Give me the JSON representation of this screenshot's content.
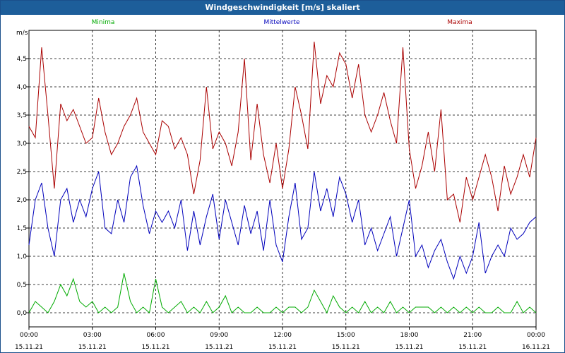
{
  "title": "Windgeschwindigkeit [m/s] skaliert",
  "chart_data": {
    "type": "line",
    "ylabel": "m/s",
    "ylim": [
      -0.25,
      5.0
    ],
    "y_ticks": [
      "0,0",
      "0,5",
      "1,0",
      "1,5",
      "2,0",
      "2,5",
      "3,0",
      "3,5",
      "4,0",
      "4,5"
    ],
    "y_tick_values": [
      0,
      0.5,
      1,
      1.5,
      2,
      2.5,
      3,
      3.5,
      4,
      4.5
    ],
    "xlim": [
      0,
      24
    ],
    "x_tick_values": [
      0,
      3,
      6,
      9,
      12,
      15,
      18,
      21,
      24
    ],
    "x_ticks": [
      {
        "time": "00:00",
        "date": "15.11.21"
      },
      {
        "time": "03:00",
        "date": "15.11.21"
      },
      {
        "time": "06:00",
        "date": "15.11.21"
      },
      {
        "time": "09:00",
        "date": "15.11.21"
      },
      {
        "time": "12:00",
        "date": "15.11.21"
      },
      {
        "time": "15:00",
        "date": "15.11.21"
      },
      {
        "time": "18:00",
        "date": "15.11.21"
      },
      {
        "time": "21:00",
        "date": "15.11.21"
      },
      {
        "time": "00:00",
        "date": "16.11.21"
      }
    ],
    "grid": true,
    "legend_position": "top",
    "series": [
      {
        "name": "Minima",
        "color": "#00aa00",
        "x": [
          0,
          0.3,
          0.6,
          0.9,
          1.2,
          1.5,
          1.8,
          2.1,
          2.4,
          2.7,
          3.0,
          3.3,
          3.6,
          3.9,
          4.2,
          4.5,
          4.8,
          5.1,
          5.4,
          5.7,
          6.0,
          6.3,
          6.6,
          6.9,
          7.2,
          7.5,
          7.8,
          8.1,
          8.4,
          8.7,
          9.0,
          9.3,
          9.6,
          9.9,
          10.2,
          10.5,
          10.8,
          11.1,
          11.4,
          11.7,
          12.0,
          12.3,
          12.6,
          12.9,
          13.2,
          13.5,
          13.8,
          14.1,
          14.4,
          14.7,
          15.0,
          15.3,
          15.6,
          15.9,
          16.2,
          16.5,
          16.8,
          17.1,
          17.4,
          17.7,
          18.0,
          18.3,
          18.6,
          18.9,
          19.2,
          19.5,
          19.8,
          20.1,
          20.4,
          20.7,
          21.0,
          21.3,
          21.6,
          21.9,
          22.2,
          22.5,
          22.8,
          23.1,
          23.4,
          23.7,
          24.0
        ],
        "values": [
          0.0,
          0.2,
          0.1,
          0.0,
          0.2,
          0.5,
          0.3,
          0.6,
          0.2,
          0.1,
          0.2,
          0.0,
          0.1,
          0.0,
          0.1,
          0.7,
          0.2,
          0.0,
          0.1,
          0.0,
          0.6,
          0.1,
          0.0,
          0.1,
          0.2,
          0.0,
          0.1,
          0.0,
          0.2,
          0.0,
          0.1,
          0.3,
          0.0,
          0.1,
          0.0,
          0.0,
          0.1,
          0.0,
          0.0,
          0.1,
          0.0,
          0.1,
          0.1,
          0.0,
          0.1,
          0.4,
          0.2,
          0.0,
          0.3,
          0.1,
          0.0,
          0.1,
          0.0,
          0.2,
          0.0,
          0.1,
          0.0,
          0.2,
          0.0,
          0.1,
          0.0,
          0.1,
          0.1,
          0.1,
          0.0,
          0.1,
          0.0,
          0.1,
          0.0,
          0.1,
          0.0,
          0.1,
          0.0,
          0.0,
          0.1,
          0.0,
          0.0,
          0.2,
          0.0,
          0.1,
          0.0
        ]
      },
      {
        "name": "Mittelwerte",
        "color": "#0000bb",
        "x": [
          0,
          0.3,
          0.6,
          0.9,
          1.2,
          1.5,
          1.8,
          2.1,
          2.4,
          2.7,
          3.0,
          3.3,
          3.6,
          3.9,
          4.2,
          4.5,
          4.8,
          5.1,
          5.4,
          5.7,
          6.0,
          6.3,
          6.6,
          6.9,
          7.2,
          7.5,
          7.8,
          8.1,
          8.4,
          8.7,
          9.0,
          9.3,
          9.6,
          9.9,
          10.2,
          10.5,
          10.8,
          11.1,
          11.4,
          11.7,
          12.0,
          12.3,
          12.6,
          12.9,
          13.2,
          13.5,
          13.8,
          14.1,
          14.4,
          14.7,
          15.0,
          15.3,
          15.6,
          15.9,
          16.2,
          16.5,
          16.8,
          17.1,
          17.4,
          17.7,
          18.0,
          18.3,
          18.6,
          18.9,
          19.2,
          19.5,
          19.8,
          20.1,
          20.4,
          20.7,
          21.0,
          21.3,
          21.6,
          21.9,
          22.2,
          22.5,
          22.8,
          23.1,
          23.4,
          23.7,
          24.0
        ],
        "values": [
          1.2,
          2.0,
          2.3,
          1.5,
          1.0,
          2.0,
          2.2,
          1.6,
          2.0,
          1.7,
          2.2,
          2.5,
          1.5,
          1.4,
          2.0,
          1.6,
          2.4,
          2.6,
          1.9,
          1.4,
          1.8,
          1.6,
          1.8,
          1.5,
          2.0,
          1.1,
          1.8,
          1.2,
          1.7,
          2.1,
          1.3,
          2.0,
          1.6,
          1.2,
          1.9,
          1.4,
          1.8,
          1.1,
          2.0,
          1.2,
          0.9,
          1.7,
          2.3,
          1.3,
          1.5,
          2.5,
          1.8,
          2.2,
          1.7,
          2.4,
          2.1,
          1.6,
          2.0,
          1.2,
          1.5,
          1.1,
          1.4,
          1.7,
          1.0,
          1.5,
          2.0,
          1.0,
          1.2,
          0.8,
          1.1,
          1.3,
          0.9,
          0.6,
          1.0,
          0.7,
          1.0,
          1.6,
          0.7,
          1.0,
          1.2,
          1.0,
          1.5,
          1.3,
          1.4,
          1.6,
          1.7
        ]
      },
      {
        "name": "Maxima",
        "color": "#aa0000",
        "x": [
          0,
          0.3,
          0.6,
          0.9,
          1.2,
          1.5,
          1.8,
          2.1,
          2.4,
          2.7,
          3.0,
          3.3,
          3.6,
          3.9,
          4.2,
          4.5,
          4.8,
          5.1,
          5.4,
          5.7,
          6.0,
          6.3,
          6.6,
          6.9,
          7.2,
          7.5,
          7.8,
          8.1,
          8.4,
          8.7,
          9.0,
          9.3,
          9.6,
          9.9,
          10.2,
          10.5,
          10.8,
          11.1,
          11.4,
          11.7,
          12.0,
          12.3,
          12.6,
          12.9,
          13.2,
          13.5,
          13.8,
          14.1,
          14.4,
          14.7,
          15.0,
          15.3,
          15.6,
          15.9,
          16.2,
          16.5,
          16.8,
          17.1,
          17.4,
          17.7,
          18.0,
          18.3,
          18.6,
          18.9,
          19.2,
          19.5,
          19.8,
          20.1,
          20.4,
          20.7,
          21.0,
          21.3,
          21.6,
          21.9,
          22.2,
          22.5,
          22.8,
          23.1,
          23.4,
          23.7,
          24.0
        ],
        "values": [
          3.3,
          3.1,
          4.7,
          3.5,
          2.2,
          3.7,
          3.4,
          3.6,
          3.3,
          3.0,
          3.1,
          3.8,
          3.2,
          2.8,
          3.0,
          3.3,
          3.5,
          3.8,
          3.2,
          3.0,
          2.8,
          3.4,
          3.3,
          2.9,
          3.1,
          2.8,
          2.1,
          2.7,
          4.0,
          2.9,
          3.2,
          3.0,
          2.6,
          3.2,
          4.5,
          2.7,
          3.7,
          2.8,
          2.3,
          3.0,
          2.2,
          2.9,
          4.0,
          3.5,
          2.9,
          4.8,
          3.7,
          4.2,
          4.0,
          4.6,
          4.4,
          3.8,
          4.4,
          3.5,
          3.2,
          3.5,
          3.9,
          3.4,
          3.0,
          4.7,
          2.9,
          2.2,
          2.6,
          3.2,
          2.5,
          3.6,
          2.0,
          2.1,
          1.6,
          2.4,
          2.0,
          2.4,
          2.8,
          2.4,
          1.8,
          2.6,
          2.1,
          2.4,
          2.8,
          2.4,
          3.1
        ]
      }
    ]
  }
}
